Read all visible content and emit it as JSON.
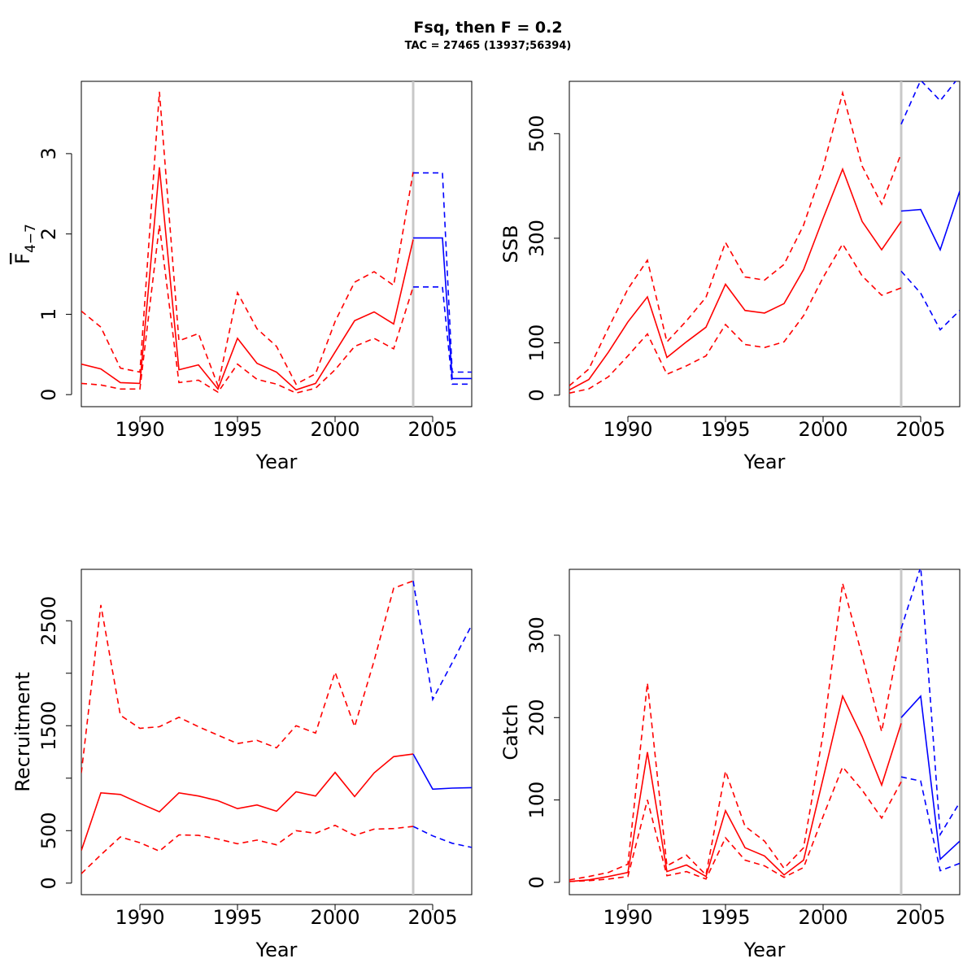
{
  "title": "Fsq, then F = 0.2",
  "subtitle": "TAC = 27465 (13937;56394)",
  "colors": {
    "historic": "#ff0000",
    "projection": "#0000ff",
    "divider": "#c8c8c8"
  },
  "chart_data": [
    {
      "type": "line",
      "ylabel": "F4-7",
      "ylabel_main": "F",
      "ylabel_sub": "4−7",
      "xlabel": "Year",
      "xlim": [
        1987,
        2007
      ],
      "ylim": [
        -0.15,
        3.9
      ],
      "x_ticks": [
        1990,
        1995,
        2000,
        2005
      ],
      "y_ticks": [
        0,
        1,
        2,
        3
      ],
      "divider_x": 2004,
      "series": [
        {
          "role": "historic",
          "style": "solid",
          "x": [
            1987,
            1988,
            1989,
            1990,
            1991,
            1992,
            1993,
            1994,
            1995,
            1996,
            1997,
            1998,
            1999,
            2000,
            2001,
            2002,
            2003,
            2004
          ],
          "y": [
            0.38,
            0.32,
            0.15,
            0.14,
            2.83,
            0.31,
            0.37,
            0.07,
            0.7,
            0.39,
            0.28,
            0.06,
            0.14,
            0.53,
            0.92,
            1.03,
            0.88,
            1.93
          ]
        },
        {
          "role": "historic",
          "style": "dashed",
          "x": [
            1987,
            1988,
            1989,
            1990,
            1991,
            1992,
            1993,
            1994,
            1995,
            1996,
            1997,
            1998,
            1999,
            2000,
            2001,
            2002,
            2003,
            2004
          ],
          "y": [
            1.04,
            0.84,
            0.33,
            0.28,
            3.77,
            0.67,
            0.76,
            0.11,
            1.27,
            0.82,
            0.6,
            0.13,
            0.26,
            0.91,
            1.4,
            1.53,
            1.36,
            2.77
          ]
        },
        {
          "role": "historic",
          "style": "dashed",
          "x": [
            1987,
            1988,
            1989,
            1990,
            1991,
            1992,
            1993,
            1994,
            1995,
            1996,
            1997,
            1998,
            1999,
            2000,
            2001,
            2002,
            2003,
            2004
          ],
          "y": [
            0.14,
            0.12,
            0.07,
            0.07,
            2.11,
            0.15,
            0.18,
            0.03,
            0.38,
            0.19,
            0.13,
            0.02,
            0.08,
            0.31,
            0.6,
            0.7,
            0.57,
            1.34
          ]
        },
        {
          "role": "projection",
          "style": "solid",
          "x": [
            2004,
            2005,
            2005.5,
            2006,
            2007
          ],
          "y": [
            1.95,
            1.95,
            1.95,
            0.2,
            0.2
          ]
        },
        {
          "role": "projection",
          "style": "dashed",
          "x": [
            2004,
            2005,
            2005.5,
            2006,
            2007
          ],
          "y": [
            2.76,
            2.76,
            2.76,
            0.28,
            0.28
          ]
        },
        {
          "role": "projection",
          "style": "dashed",
          "x": [
            2004,
            2005,
            2005.5,
            2006,
            2007
          ],
          "y": [
            1.34,
            1.34,
            1.34,
            0.13,
            0.13
          ]
        }
      ]
    },
    {
      "type": "line",
      "ylabel": "SSB",
      "xlabel": "Year",
      "xlim": [
        1987,
        2007
      ],
      "ylim": [
        -22,
        600
      ],
      "x_ticks": [
        1990,
        1995,
        2000,
        2005
      ],
      "y_ticks": [
        0,
        100,
        300,
        500
      ],
      "divider_x": 2004,
      "series": [
        {
          "role": "historic",
          "style": "solid",
          "x": [
            1987,
            1988,
            1989,
            1990,
            1991,
            1992,
            1993,
            1994,
            1995,
            1996,
            1997,
            1998,
            1999,
            2000,
            2001,
            2002,
            2003,
            2004
          ],
          "y": [
            10,
            30,
            82,
            140,
            188,
            72,
            102,
            130,
            212,
            162,
            157,
            175,
            240,
            338,
            432,
            332,
            278,
            332
          ]
        },
        {
          "role": "historic",
          "style": "dashed",
          "x": [
            1987,
            1988,
            1989,
            1990,
            1991,
            1992,
            1993,
            1994,
            1995,
            1996,
            1997,
            1998,
            1999,
            2000,
            2001,
            2002,
            2003,
            2004
          ],
          "y": [
            18,
            50,
            128,
            203,
            258,
            102,
            142,
            187,
            292,
            226,
            220,
            250,
            325,
            435,
            578,
            438,
            365,
            462
          ]
        },
        {
          "role": "historic",
          "style": "dashed",
          "x": [
            1987,
            1988,
            1989,
            1990,
            1991,
            1992,
            1993,
            1994,
            1995,
            1996,
            1997,
            1998,
            1999,
            2000,
            2001,
            2002,
            2003,
            2004
          ],
          "y": [
            4,
            12,
            35,
            75,
            117,
            40,
            56,
            75,
            135,
            97,
            91,
            102,
            152,
            225,
            289,
            228,
            191,
            205
          ]
        },
        {
          "role": "projection",
          "style": "solid",
          "x": [
            2004,
            2005,
            2006,
            2007
          ],
          "y": [
            352,
            355,
            278,
            390
          ]
        },
        {
          "role": "projection",
          "style": "dashed",
          "x": [
            2004,
            2005,
            2006,
            2007
          ],
          "y": [
            518,
            602,
            563,
            610
          ]
        },
        {
          "role": "projection",
          "style": "dashed",
          "x": [
            2004,
            2005,
            2006,
            2007
          ],
          "y": [
            237,
            195,
            125,
            162
          ]
        }
      ]
    },
    {
      "type": "line",
      "ylabel": "Recruitment",
      "xlabel": "Year",
      "xlim": [
        1987,
        2007
      ],
      "ylim": [
        -110,
        2990
      ],
      "x_ticks": [
        1990,
        1995,
        2000,
        2005
      ],
      "y_ticks": [
        0,
        500,
        1500,
        2500
      ],
      "y_minor_ticks": [
        1000,
        2000
      ],
      "divider_x": 2004,
      "series": [
        {
          "role": "historic",
          "style": "solid",
          "x": [
            1987,
            1988,
            1989,
            1990,
            1991,
            1992,
            1993,
            1994,
            1995,
            1996,
            1997,
            1998,
            1999,
            2000,
            2001,
            2002,
            2003,
            2004
          ],
          "y": [
            310,
            860,
            845,
            760,
            680,
            860,
            830,
            785,
            710,
            745,
            685,
            870,
            830,
            1055,
            825,
            1050,
            1205,
            1230
          ]
        },
        {
          "role": "historic",
          "style": "dashed",
          "x": [
            1987,
            1988,
            1989,
            1990,
            1991,
            1992,
            1993,
            1994,
            1995,
            1996,
            1997,
            1998,
            1999,
            2000,
            2001,
            2002,
            2003,
            2004
          ],
          "y": [
            1050,
            2650,
            1600,
            1475,
            1490,
            1580,
            1490,
            1410,
            1330,
            1360,
            1290,
            1500,
            1430,
            2010,
            1490,
            2120,
            2810,
            2880
          ]
        },
        {
          "role": "historic",
          "style": "dashed",
          "x": [
            1987,
            1988,
            1989,
            1990,
            1991,
            1992,
            1993,
            1994,
            1995,
            1996,
            1997,
            1998,
            1999,
            2000,
            2001,
            2002,
            2003,
            2004
          ],
          "y": [
            90,
            270,
            440,
            385,
            305,
            460,
            455,
            420,
            375,
            410,
            365,
            500,
            475,
            550,
            455,
            515,
            520,
            540
          ]
        },
        {
          "role": "projection",
          "style": "solid",
          "x": [
            2004,
            2005,
            2006,
            2007
          ],
          "y": [
            1230,
            895,
            905,
            910
          ]
        },
        {
          "role": "projection",
          "style": "dashed",
          "x": [
            2004,
            2005,
            2006,
            2007
          ],
          "y": [
            2880,
            1750,
            2100,
            2460
          ]
        },
        {
          "role": "projection",
          "style": "dashed",
          "x": [
            2004,
            2005,
            2006,
            2007
          ],
          "y": [
            540,
            450,
            380,
            340
          ]
        }
      ]
    },
    {
      "type": "line",
      "ylabel": "Catch",
      "xlabel": "Year",
      "xlim": [
        1987,
        2007
      ],
      "ylim": [
        -15,
        380
      ],
      "x_ticks": [
        1990,
        1995,
        2000,
        2005
      ],
      "y_ticks": [
        0,
        100,
        200,
        300
      ],
      "divider_x": 2004,
      "series": [
        {
          "role": "historic",
          "style": "solid",
          "x": [
            1987,
            1988,
            1989,
            1990,
            1991,
            1992,
            1993,
            1994,
            1995,
            1996,
            1997,
            1998,
            1999,
            2000,
            2001,
            2002,
            2003,
            2004
          ],
          "y": [
            1,
            3,
            7,
            12,
            158,
            13,
            21,
            7,
            87,
            42,
            32,
            9,
            27,
            126,
            226,
            177,
            118,
            193
          ]
        },
        {
          "role": "historic",
          "style": "dashed",
          "x": [
            1987,
            1988,
            1989,
            1990,
            1991,
            1992,
            1993,
            1994,
            1995,
            1996,
            1997,
            1998,
            1999,
            2000,
            2001,
            2002,
            2003,
            2004
          ],
          "y": [
            3,
            7,
            12,
            22,
            242,
            20,
            33,
            9,
            135,
            68,
            50,
            17,
            42,
            180,
            363,
            275,
            183,
            305
          ]
        },
        {
          "role": "historic",
          "style": "dashed",
          "x": [
            1987,
            1988,
            1989,
            1990,
            1991,
            1992,
            1993,
            1994,
            1995,
            1996,
            1997,
            1998,
            1999,
            2000,
            2001,
            2002,
            2003,
            2004
          ],
          "y": [
            1,
            2,
            4,
            7,
            100,
            8,
            13,
            4,
            54,
            27,
            20,
            6,
            18,
            80,
            140,
            112,
            78,
            122
          ]
        },
        {
          "role": "projection",
          "style": "solid",
          "x": [
            2004,
            2005,
            2006,
            2007
          ],
          "y": [
            200,
            226,
            28,
            50
          ]
        },
        {
          "role": "projection",
          "style": "dashed",
          "x": [
            2004,
            2005,
            2006,
            2007
          ],
          "y": [
            308,
            383,
            58,
            97
          ]
        },
        {
          "role": "projection",
          "style": "dashed",
          "x": [
            2004,
            2005,
            2006,
            2007
          ],
          "y": [
            128,
            123,
            14,
            23
          ]
        }
      ]
    }
  ]
}
